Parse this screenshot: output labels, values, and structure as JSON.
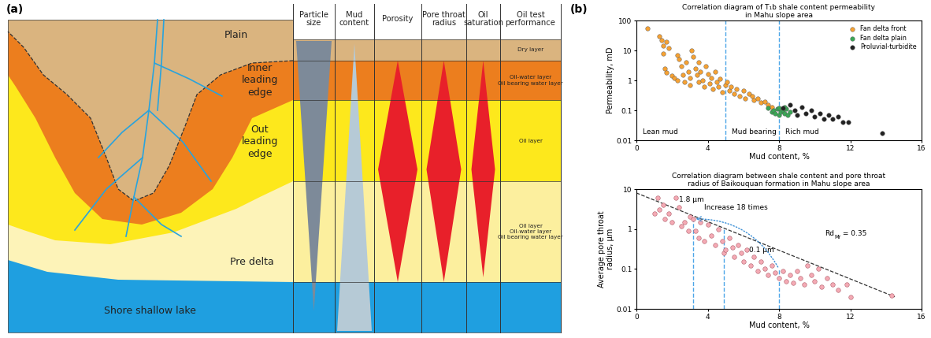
{
  "panel_labels": [
    "(a)",
    "(b)"
  ],
  "diagram": {
    "columns": [
      "Particle\nsize",
      "Mud\ncontent",
      "Porosity",
      "Pore throat\nradius",
      "Oil\nsaturation",
      "Oil test\nperformance"
    ],
    "facies": [
      {
        "name": "Plain",
        "color": "#dab47f",
        "oil_test": "Dry layer"
      },
      {
        "name": "Inner\nleading\nedge",
        "color": "#ec7e1e",
        "oil_test": "Oil-water layer\nOil bearing water layer"
      },
      {
        "name": "Out\nleading\nedge",
        "color": "#fde81c",
        "oil_test": "Oil layer"
      },
      {
        "name": "Pre delta",
        "color": "#fcef9e",
        "oil_test": "Oil layer\nOil-water layer\nOil bearing water layer"
      },
      {
        "name": "Shore shallow lake",
        "color": "#1f9fe0"
      }
    ]
  },
  "chart_data": [
    {
      "type": "scatter",
      "title": "Correlation diagram of T₁b shale content permeability\nin Mahu slope area",
      "x_label": "Mud content, %",
      "y_label": "Permeability, mD",
      "log": "y",
      "xlim": [
        0,
        16
      ],
      "ylim": [
        0.01,
        100
      ],
      "xticks": [
        0,
        4,
        8,
        12,
        16
      ],
      "yticks": [
        0.01,
        0.1,
        1,
        10,
        100
      ],
      "legend": "upper right",
      "thresholds": [
        5,
        8
      ],
      "zone_labels": [
        "Lean mud",
        "Mud bearing",
        "Rich mud"
      ],
      "series": [
        {
          "name": "Fan delta front",
          "color": "#f5a133",
          "marker": "o",
          "x": [
            0.6,
            1.3,
            1.4,
            1.5,
            1.5,
            1.7,
            1.8,
            1.6,
            1.7,
            2.0,
            2.1,
            2.3,
            2.4,
            2.3,
            2.5,
            2.6,
            2.7,
            2.8,
            2.9,
            3.0,
            3.1,
            3.2,
            3.0,
            3.3,
            3.4,
            3.5,
            3.5,
            3.6,
            3.7,
            3.8,
            3.9,
            4.0,
            4.1,
            4.2,
            4.3,
            4.4,
            4.5,
            4.6,
            4.7,
            4.8,
            5.0,
            5.1,
            5.2,
            5.3,
            5.5,
            5.6,
            5.8,
            6.0,
            6.1,
            6.3,
            6.5,
            6.6,
            6.8,
            7.0,
            7.2,
            7.4,
            7.6
          ],
          "values": [
            55,
            30,
            22,
            14,
            8,
            20,
            12,
            2.5,
            1.8,
            1.4,
            1.2,
            7,
            5,
            1.0,
            3,
            1.5,
            0.9,
            4,
            2,
            1.2,
            10,
            6,
            0.7,
            2.5,
            1.5,
            0.9,
            4,
            2,
            1.0,
            0.6,
            3,
            1.6,
            0.8,
            1.2,
            0.5,
            2,
            0.9,
            0.6,
            1.1,
            0.4,
            0.7,
            0.9,
            0.45,
            0.6,
            0.35,
            0.5,
            0.3,
            0.45,
            0.25,
            0.35,
            0.3,
            0.22,
            0.25,
            0.18,
            0.2,
            0.15,
            0.13
          ]
        },
        {
          "name": "Fan delta plain",
          "color": "#3aa655",
          "marker": "o",
          "x": [
            7.4,
            7.6,
            7.7,
            7.8,
            7.9,
            8.0,
            8.0,
            8.1,
            8.2,
            8.3,
            8.4,
            8.5,
            8.6,
            8.3
          ],
          "values": [
            0.12,
            0.09,
            0.1,
            0.08,
            0.11,
            0.07,
            0.12,
            0.09,
            0.1,
            0.08,
            0.11,
            0.07,
            0.09,
            0.13
          ]
        },
        {
          "name": "Proluvial-turbidite",
          "color": "#222222",
          "marker": "o",
          "x": [
            8.2,
            8.6,
            8.9,
            9.0,
            9.3,
            9.5,
            9.8,
            10.0,
            10.3,
            10.5,
            10.8,
            11.0,
            11.3,
            11.6,
            11.9,
            13.8
          ],
          "values": [
            0.12,
            0.15,
            0.1,
            0.07,
            0.13,
            0.08,
            0.1,
            0.06,
            0.08,
            0.05,
            0.07,
            0.05,
            0.06,
            0.04,
            0.04,
            0.017
          ]
        }
      ]
    },
    {
      "type": "scatter",
      "title": "Correlation diagram between shale content and pore throat\nradius of Baikouquan formation in Mahu slope area",
      "x_label": "Mud content, %",
      "y_label": "Average pore throat\nradius, μm",
      "log": "y",
      "xlim": [
        0,
        16
      ],
      "ylim": [
        0.01,
        10
      ],
      "xticks": [
        0,
        4,
        8,
        12,
        16
      ],
      "yticks": [
        0.01,
        0.1,
        1,
        10
      ],
      "color": "#f4aab4",
      "marker": "o",
      "x": [
        1.0,
        1.2,
        1.3,
        1.5,
        1.6,
        1.8,
        2.0,
        2.2,
        2.4,
        2.5,
        2.7,
        2.9,
        3.0,
        3.2,
        3.3,
        3.5,
        3.6,
        3.8,
        4.0,
        4.2,
        4.4,
        4.6,
        4.8,
        4.9,
        5.0,
        5.2,
        5.4,
        5.5,
        5.7,
        5.9,
        6.0,
        6.2,
        6.4,
        6.6,
        6.8,
        7.0,
        7.2,
        7.4,
        7.6,
        7.8,
        8.0,
        8.2,
        8.4,
        8.6,
        8.8,
        9.0,
        9.2,
        9.4,
        9.6,
        9.8,
        10.0,
        10.2,
        10.4,
        10.7,
        11.0,
        11.3,
        11.8,
        12.0,
        14.3
      ],
      "values": [
        2.5,
        6,
        3,
        4,
        1.8,
        2.5,
        1.5,
        6,
        3.5,
        1.2,
        1.5,
        0.9,
        2,
        1.8,
        0.9,
        0.6,
        1.5,
        0.5,
        1.3,
        0.7,
        0.4,
        1.0,
        0.5,
        0.25,
        0.3,
        0.6,
        0.35,
        0.2,
        0.4,
        0.25,
        0.15,
        0.3,
        0.12,
        0.2,
        0.09,
        0.15,
        0.1,
        0.07,
        0.12,
        0.08,
        0.06,
        0.09,
        0.05,
        0.07,
        0.045,
        0.09,
        0.06,
        0.04,
        0.12,
        0.07,
        0.05,
        0.1,
        0.035,
        0.06,
        0.04,
        0.03,
        0.04,
        0.02,
        0.022
      ],
      "trend_line": {
        "x": [
          0,
          14.5
        ],
        "values": [
          8,
          0.02
        ],
        "line_style": "dashed",
        "color": "#333333"
      },
      "trend_label": {
        "text": "Rd",
        "subscript": "Mr",
        "suffix": " = 0.35"
      },
      "guide_lines": [
        {
          "x": 3.2,
          "to": 1.8
        },
        {
          "x": 4.9,
          "to": 1.0
        },
        {
          "x": 8,
          "to": 0.1
        }
      ],
      "change": {
        "high": {
          "x": 3.2,
          "y": 1.8,
          "label": "1.8 μm"
        },
        "low": {
          "x": 8,
          "y": 0.1,
          "label": "0.1 μm"
        },
        "label": "Increase 18 times"
      }
    }
  ]
}
